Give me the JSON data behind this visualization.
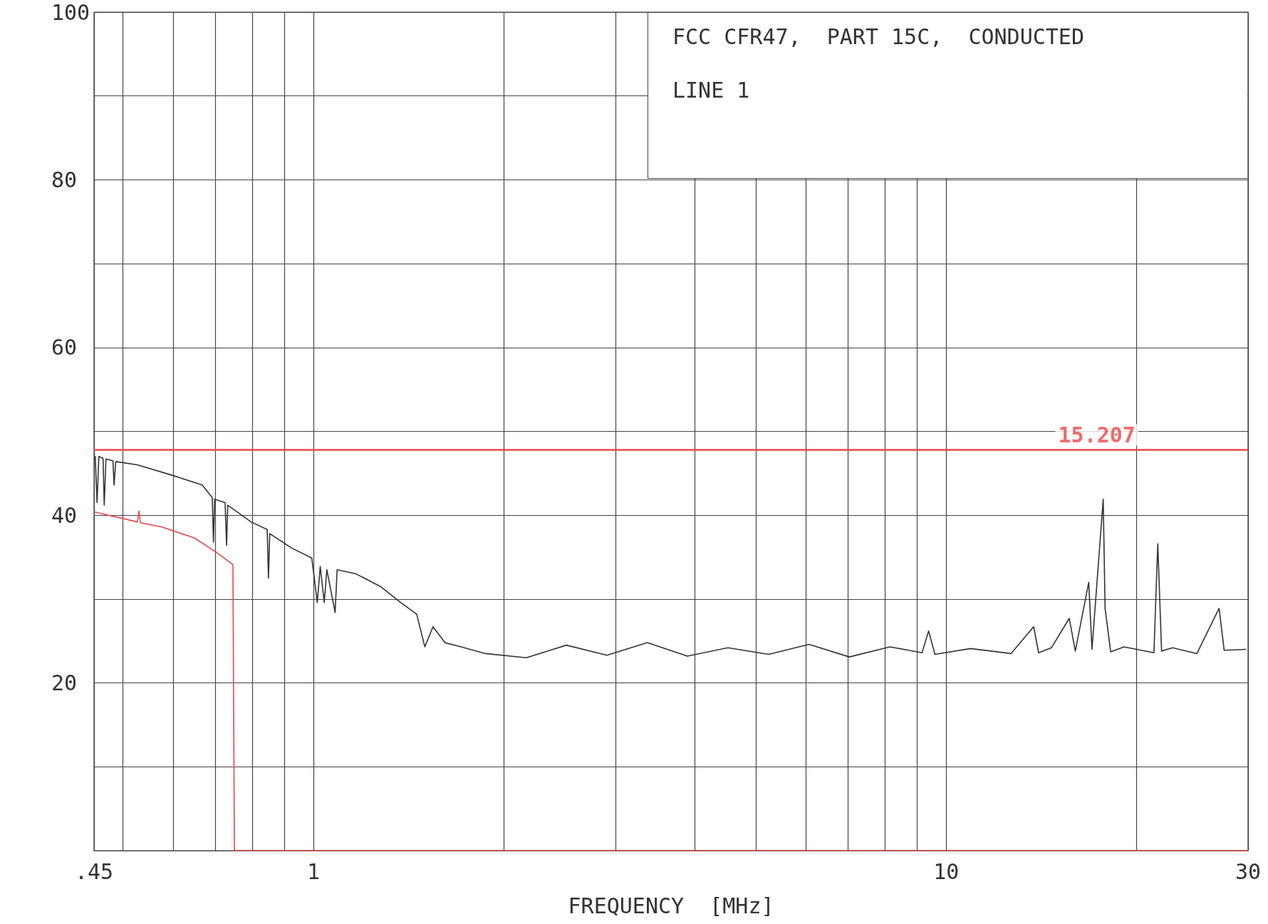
{
  "chart_data": {
    "type": "line",
    "xlabel": "FREQUENCY  [MHz]",
    "log": "x",
    "grid": true,
    "marker": "none",
    "line_style": "solid",
    "annotations": [
      "FCC CFR47,  PART 15C,  CONDUCTED",
      "LINE 1",
      {
        "text": "15.207",
        "x": 17.3,
        "y": 47.8
      }
    ],
    "xlim": [
      0.45,
      30
    ],
    "xticks": [
      {
        "value": 0.45,
        "label": ".45"
      },
      {
        "value": 0.5,
        "label": null
      },
      {
        "value": 0.6,
        "label": null
      },
      {
        "value": 0.7,
        "label": null
      },
      {
        "value": 0.8,
        "label": null
      },
      {
        "value": 0.9,
        "label": null
      },
      1,
      {
        "value": 2,
        "label": null
      },
      {
        "value": 3,
        "label": null
      },
      {
        "value": 4,
        "label": null
      },
      {
        "value": 5,
        "label": null
      },
      {
        "value": 6,
        "label": null
      },
      {
        "value": 7,
        "label": null
      },
      {
        "value": 8,
        "label": null
      },
      {
        "value": 9,
        "label": null
      },
      10,
      {
        "value": 20,
        "label": null
      },
      30
    ],
    "ylim": [
      0,
      100
    ],
    "yticks": [
      {
        "value": 0,
        "label": null
      },
      {
        "value": 10,
        "label": null
      },
      20,
      {
        "value": 30,
        "label": null
      },
      40,
      {
        "value": 50,
        "label": null
      },
      60,
      {
        "value": 70,
        "label": null
      },
      80,
      {
        "value": 90,
        "label": null
      },
      100
    ],
    "ref_lines": [
      {
        "axis": "y",
        "value": 47.8,
        "color": "#e8474a"
      }
    ],
    "series": [
      {
        "color": "#e8474a",
        "x": [
          0.45,
          0.527,
          0.53,
          0.533,
          0.576,
          0.648,
          0.708,
          0.746,
          0.75,
          30
        ],
        "values": [
          40.4,
          39.2,
          40.5,
          39.1,
          38.6,
          37.3,
          35.4,
          34.1,
          0,
          0
        ]
      },
      {
        "color": "#333333",
        "x": [
          0.452,
          0.455,
          0.458,
          0.465,
          0.467,
          0.47,
          0.482,
          0.484,
          0.487,
          0.527,
          0.602,
          0.667,
          0.692,
          0.695,
          0.698,
          0.725,
          0.729,
          0.732,
          0.797,
          0.845,
          0.849,
          0.853,
          0.923,
          0.994,
          1.014,
          1.025,
          1.04,
          1.05,
          1.082,
          1.09,
          1.168,
          1.276,
          1.373,
          1.456,
          1.5,
          1.545,
          1.614,
          1.712,
          1.87,
          2.17,
          2.51,
          2.91,
          3.37,
          3.9,
          4.52,
          5.24,
          6.07,
          7.03,
          8.15,
          9.16,
          9.38,
          9.6,
          10.93,
          12.66,
          13.75,
          14.0,
          14.67,
          15.65,
          16.0,
          16.8,
          17.0,
          17.71,
          17.83,
          18.2,
          19.1,
          21.3,
          21.6,
          21.9,
          22.8,
          24.9,
          27.0,
          27.5,
          29.75
        ],
        "values": [
          47.0,
          41.5,
          47.0,
          46.8,
          41.2,
          46.7,
          46.5,
          43.6,
          46.4,
          46.0,
          44.7,
          43.6,
          42.1,
          36.8,
          41.9,
          41.5,
          36.4,
          41.2,
          39.2,
          38.3,
          32.5,
          37.8,
          36.1,
          34.9,
          29.6,
          33.9,
          29.6,
          33.5,
          28.4,
          33.5,
          33.0,
          31.5,
          29.6,
          28.2,
          24.3,
          26.7,
          24.8,
          24.3,
          23.5,
          23.0,
          24.5,
          23.3,
          24.8,
          23.2,
          24.2,
          23.4,
          24.6,
          23.1,
          24.3,
          23.6,
          26.2,
          23.4,
          24.1,
          23.5,
          26.7,
          23.6,
          24.2,
          27.7,
          23.8,
          32.0,
          24.0,
          41.9,
          28.9,
          23.7,
          24.3,
          23.6,
          36.6,
          23.8,
          24.2,
          23.5,
          28.9,
          23.9,
          24.0
        ]
      }
    ]
  }
}
